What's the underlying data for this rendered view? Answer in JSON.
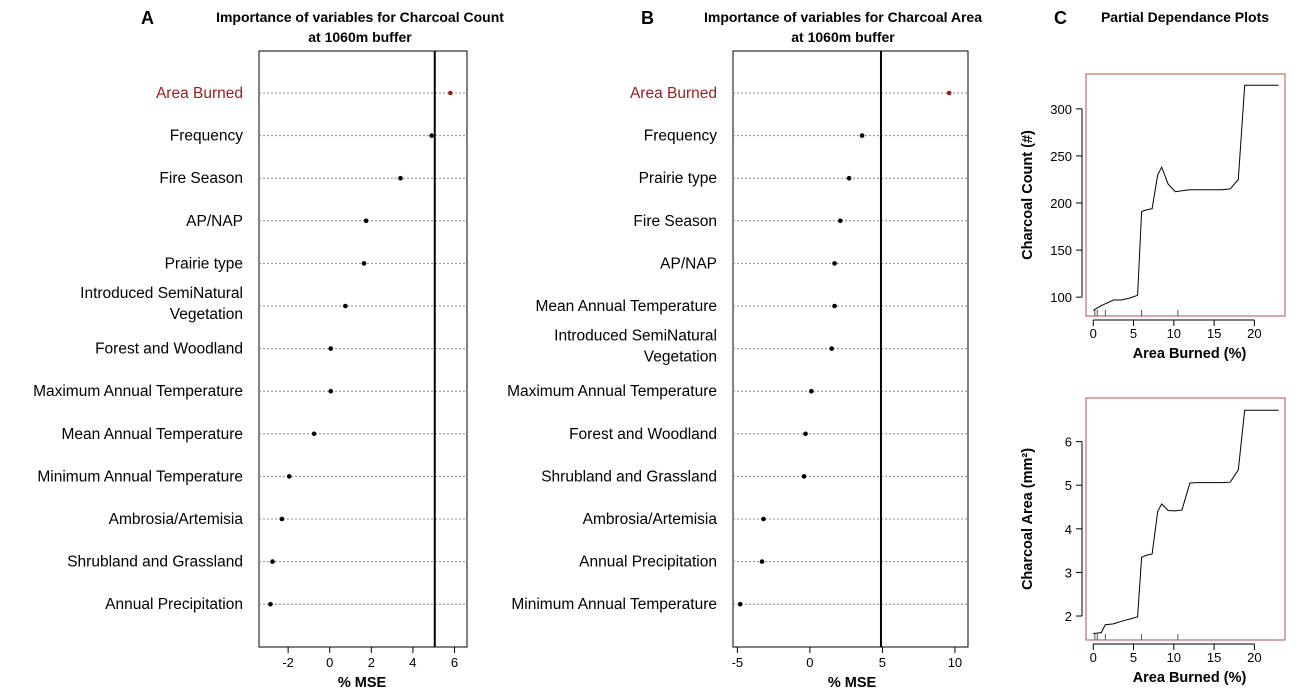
{
  "colors": {
    "highlight": "#9b1c1c",
    "pd_frame": "#b5534d",
    "dotted": "#8a8a8a",
    "point": "#000000"
  },
  "panel_a": {
    "letter": "A",
    "title_line1": "Importance of variables for Charcoal Count",
    "title_line2": "at 1060m buffer",
    "xlabel": "% MSE"
  },
  "panel_b": {
    "letter": "B",
    "title_line1": "Importance of variables for Charcoal Area",
    "title_line2": "at 1060m buffer",
    "xlabel": "% MSE"
  },
  "panel_c": {
    "letter": "C",
    "title": "Partial Dependance Plots"
  },
  "chart_data": [
    {
      "id": "A",
      "type": "scatter",
      "subtype": "dot plot",
      "title": "Importance of variables for Charcoal Count at 1060m buffer",
      "xlabel": "% MSE",
      "xlim": [
        -3.4,
        6.6
      ],
      "xticks": [
        -2,
        0,
        2,
        4,
        6
      ],
      "reference_line": 5.05,
      "highlight_color": "#9b1c1c",
      "items": [
        {
          "label": "Area Burned",
          "value": 5.8,
          "highlight": true
        },
        {
          "label": "Frequency",
          "value": 4.9
        },
        {
          "label": "Fire Season",
          "value": 3.4
        },
        {
          "label": "AP/NAP",
          "value": 1.75
        },
        {
          "label": "Prairie type",
          "value": 1.65
        },
        {
          "label": "Introduced SemiNatural Vegetation",
          "lines": [
            "Introduced SemiNatural",
            "Vegetation"
          ],
          "value": 0.75
        },
        {
          "label": "Forest and Woodland",
          "value": 0.05
        },
        {
          "label": "Maximum Annual Temperature",
          "value": 0.05
        },
        {
          "label": "Mean Annual Temperature",
          "value": -0.75
        },
        {
          "label": "Minimum Annual Temperature",
          "value": -1.95
        },
        {
          "label": "Ambrosia/Artemisia",
          "value": -2.3
        },
        {
          "label": "Shrubland and Grassland",
          "value": -2.75
        },
        {
          "label": "Annual Precipitation",
          "value": -2.85
        }
      ]
    },
    {
      "id": "B",
      "type": "scatter",
      "subtype": "dot plot",
      "title": "Importance of variables for Charcoal Area at 1060m buffer",
      "xlabel": "% MSE",
      "xlim": [
        -5.3,
        10.9
      ],
      "xticks": [
        -5,
        0,
        5,
        10
      ],
      "reference_line": 4.9,
      "highlight_color": "#9b1c1c",
      "items": [
        {
          "label": "Area Burned",
          "value": 9.6,
          "highlight": true
        },
        {
          "label": "Frequency",
          "value": 3.6
        },
        {
          "label": "Prairie type",
          "value": 2.7
        },
        {
          "label": "Fire Season",
          "value": 2.1
        },
        {
          "label": "AP/NAP",
          "value": 1.7
        },
        {
          "label": "Mean Annual Temperature",
          "value": 1.7
        },
        {
          "label": "Introduced SemiNatural Vegetation",
          "lines": [
            "Introduced SemiNatural",
            "Vegetation"
          ],
          "value": 1.5
        },
        {
          "label": "Maximum Annual Temperature",
          "value": 0.1
        },
        {
          "label": "Forest and Woodland",
          "value": -0.3
        },
        {
          "label": "Shrubland and Grassland",
          "value": -0.4
        },
        {
          "label": "Ambrosia/Artemisia",
          "value": -3.2
        },
        {
          "label": "Annual Precipitation",
          "value": -3.3
        },
        {
          "label": "Minimum Annual Temperature",
          "value": -4.8
        }
      ]
    },
    {
      "id": "C-top",
      "type": "line",
      "title": "Partial Dependance Plots",
      "xlabel": "Area Burned (%)",
      "ylabel": "Charcoal Count (#)",
      "xlim": [
        -0.9,
        23.8
      ],
      "ylim": [
        80,
        337
      ],
      "xticks": [
        0,
        5,
        10,
        15,
        20
      ],
      "yticks": [
        100,
        150,
        200,
        250,
        300
      ],
      "rug": [
        0.2,
        0.5,
        1.5,
        6,
        10.5
      ],
      "x": [
        0,
        1,
        1.5,
        2.5,
        3.5,
        4.5,
        5.5,
        6.0,
        6.7,
        7.3,
        8.0,
        8.5,
        9.3,
        10.2,
        11.0,
        12.0,
        13.0,
        14.5,
        16.0,
        17.0,
        18.0,
        18.8,
        20.0,
        23.0
      ],
      "y": [
        86,
        91,
        93,
        97,
        97,
        99,
        102,
        191,
        193,
        194,
        230,
        238,
        220,
        212,
        213,
        214,
        214,
        214,
        214,
        215,
        225,
        325,
        325,
        325
      ]
    },
    {
      "id": "C-bottom",
      "type": "line",
      "xlabel": "Area Burned (%)",
      "ylabel": "Charcoal Area (mm²)",
      "xlim": [
        -0.9,
        23.8
      ],
      "ylim": [
        1.45,
        7.0
      ],
      "xticks": [
        0,
        5,
        10,
        15,
        20
      ],
      "yticks": [
        2,
        3,
        4,
        5,
        6
      ],
      "rug": [
        0.2,
        0.5,
        1.5,
        6,
        10.5
      ],
      "x": [
        0,
        1,
        1.5,
        2.5,
        3.5,
        4.5,
        5.5,
        6.0,
        6.7,
        7.3,
        8.0,
        8.5,
        9.3,
        10.2,
        11.0,
        12.0,
        13.0,
        14.5,
        16.0,
        17.0,
        18.0,
        18.8,
        20.0,
        23.0
      ],
      "y": [
        1.6,
        1.62,
        1.8,
        1.82,
        1.88,
        1.93,
        1.98,
        3.35,
        3.4,
        3.42,
        4.4,
        4.57,
        4.42,
        4.41,
        4.43,
        5.05,
        5.06,
        5.06,
        5.06,
        5.07,
        5.35,
        6.72,
        6.72,
        6.72
      ]
    }
  ]
}
